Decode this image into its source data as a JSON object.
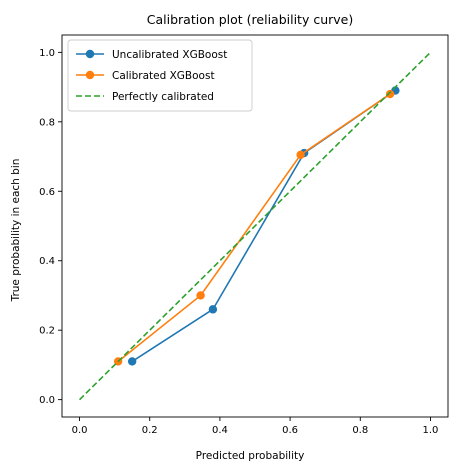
{
  "chart_data": {
    "type": "line",
    "title": "Calibration plot (reliability curve)",
    "xlabel": "Predicted probability",
    "ylabel": "True probability in each bin",
    "xlim": [
      -0.05,
      1.05
    ],
    "ylim": [
      -0.05,
      1.05
    ],
    "xticks": [
      "0.0",
      "0.2",
      "0.4",
      "0.6",
      "0.8",
      "1.0"
    ],
    "yticks": [
      "0.0",
      "0.2",
      "0.4",
      "0.6",
      "0.8",
      "1.0"
    ],
    "grid": false,
    "legend_position": "top-left",
    "series": [
      {
        "name": "Uncalibrated XGBoost",
        "color": "#1f77b4",
        "style": "solid",
        "marker": "circle",
        "x": [
          0.15,
          0.38,
          0.64,
          0.9
        ],
        "y": [
          0.11,
          0.26,
          0.71,
          0.89
        ]
      },
      {
        "name": "Calibrated XGBoost",
        "color": "#ff7f0e",
        "style": "solid",
        "marker": "circle",
        "x": [
          0.11,
          0.345,
          0.63,
          0.885
        ],
        "y": [
          0.11,
          0.3,
          0.705,
          0.88
        ]
      },
      {
        "name": "Perfectly calibrated",
        "color": "#2ca02c",
        "style": "dashed",
        "marker": "none",
        "x": [
          0.0,
          1.0
        ],
        "y": [
          0.0,
          1.0
        ]
      }
    ]
  }
}
